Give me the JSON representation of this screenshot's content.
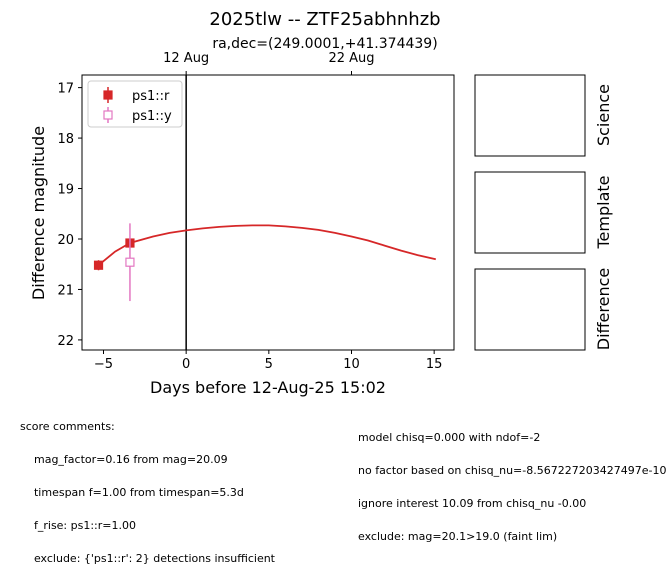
{
  "chart_data": {
    "type": "scatter",
    "title": "2025tlw -- ZTF25abhnhzb",
    "subtitle": "ra,dec=(249.0001,+41.374439)",
    "xlabel": "Days before 12-Aug-25 15:02",
    "ylabel": "Difference magnitude",
    "xlim": [
      -6.3,
      16.2
    ],
    "ylim": [
      22.2,
      16.75
    ],
    "y_inverted": true,
    "x_ticks": [
      -5,
      0,
      5,
      10,
      15
    ],
    "x_tick_labels": [
      "−5",
      "0",
      "5",
      "10",
      "15"
    ],
    "y_ticks": [
      17,
      18,
      19,
      20,
      21,
      22
    ],
    "y_tick_labels": [
      "17",
      "18",
      "19",
      "20",
      "21",
      "22"
    ],
    "top_axis_ticks": [
      {
        "x": 0,
        "label": "12 Aug"
      },
      {
        "x": 10,
        "label": "22 Aug"
      }
    ],
    "vline_x": 0,
    "legend_position": "upper-left",
    "grid": false,
    "series": [
      {
        "name": "ps1::r",
        "color": "#d62728",
        "marker": "square-filled",
        "points": [
          {
            "x": -5.3,
            "y": 20.52,
            "err": 0.1
          },
          {
            "x": -3.4,
            "y": 20.08,
            "err": 0.08
          }
        ]
      },
      {
        "name": "ps1::y",
        "color": "#e377c2",
        "marker": "square-open",
        "points": [
          {
            "x": -3.4,
            "y": 20.46,
            "err": 0.77
          }
        ]
      }
    ],
    "model_curve": {
      "color": "#d62728",
      "x": [
        -5.3,
        -4.3,
        -3.4,
        -2,
        -1,
        0,
        1,
        2,
        3,
        4,
        5,
        6,
        7,
        8,
        9,
        10,
        11,
        12,
        13,
        14,
        15.1
      ],
      "y": [
        20.52,
        20.25,
        20.08,
        19.95,
        19.88,
        19.83,
        19.79,
        19.76,
        19.74,
        19.73,
        19.73,
        19.75,
        19.78,
        19.82,
        19.88,
        19.95,
        20.03,
        20.13,
        20.23,
        20.32,
        20.4
      ]
    },
    "panels": [
      "Science",
      "Template",
      "Difference"
    ]
  },
  "comments": {
    "left": [
      "score comments:",
      "    mag_factor=0.16 from mag=20.09",
      "    timespan f=1.00 from timespan=5.3d",
      "    f_rise: ps1::r=1.00",
      "    exclude: {'ps1::r': 2} detections insufficient"
    ],
    "right": [
      "model chisq=0.000 with ndof=-2",
      "no factor based on chisq_nu=-8.567227203427497e-10",
      "ignore interest 10.09 from chisq_nu -0.00",
      "exclude: mag=20.1>19.0 (faint lim)"
    ]
  }
}
